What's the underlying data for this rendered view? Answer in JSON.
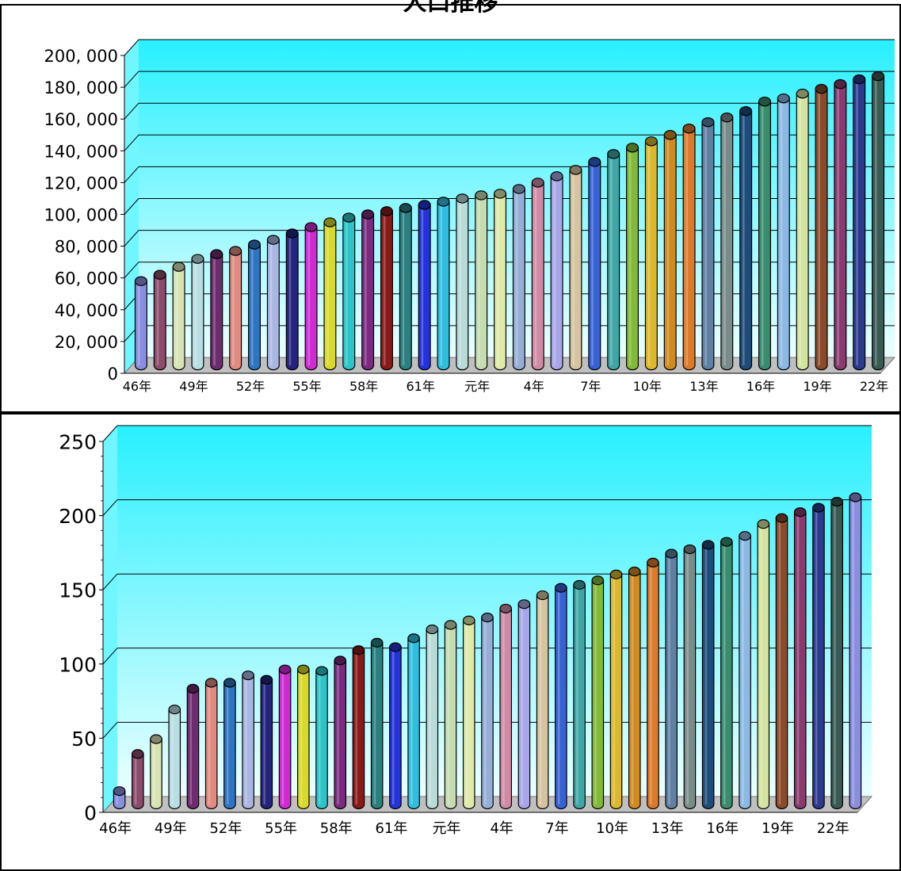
{
  "page": {
    "title": "人口推移"
  },
  "chart_data": [
    {
      "type": "bar",
      "title": "",
      "xlabel": "",
      "ylabel": "",
      "ylim": [
        0,
        200000
      ],
      "yticks": [
        "0",
        "20, 000",
        "40, 000",
        "60, 000",
        "80, 000",
        "100, 000",
        "120, 000",
        "140, 000",
        "160, 000",
        "180, 000",
        "200, 000"
      ],
      "tick_labels": [
        "46年",
        "49年",
        "52年",
        "55年",
        "58年",
        "61年",
        "元年",
        "4年",
        "7年",
        "10年",
        "13年",
        "16年",
        "19年",
        "22年"
      ],
      "values": [
        53000,
        57000,
        62000,
        67000,
        70000,
        72000,
        76000,
        79000,
        83000,
        87000,
        90000,
        93000,
        95000,
        97000,
        99000,
        101000,
        103000,
        105000,
        107000,
        108000,
        111000,
        115000,
        119000,
        123000,
        128000,
        133000,
        137000,
        141000,
        145000,
        149000,
        153000,
        156000,
        160000,
        166000,
        168000,
        171000,
        174000,
        177000,
        180000,
        182000
      ]
    },
    {
      "type": "bar",
      "title": "",
      "xlabel": "",
      "ylabel": "",
      "ylim": [
        0,
        250
      ],
      "yticks": [
        "0",
        "50",
        "100",
        "150",
        "200",
        "250"
      ],
      "tick_labels": [
        "46年",
        "49年",
        "52年",
        "55年",
        "58年",
        "61年",
        "元年",
        "4年",
        "7年",
        "10年",
        "13年",
        "16年",
        "19年",
        "22年"
      ],
      "values": [
        9,
        34,
        44,
        64,
        78,
        82,
        82,
        87,
        84,
        91,
        91,
        90,
        97,
        104,
        109,
        106,
        112,
        118,
        121,
        124,
        126,
        132,
        135,
        141,
        146,
        148,
        151,
        155,
        157,
        163,
        169,
        172,
        175,
        177,
        181,
        189,
        193,
        197,
        200,
        204,
        207
      ]
    }
  ],
  "colors": {
    "plot_top": "#28f0ff",
    "plot_bottom": "#e8ffff",
    "floor": "#c0c0c0",
    "bar_palette": [
      "#8a8ee0",
      "#8c4b6a",
      "#d8e3b5",
      "#b8dde3",
      "#6e2b6e",
      "#e08a80",
      "#2d74c2",
      "#a9b6e3",
      "#24237e",
      "#ce2bd3",
      "#d9d92b",
      "#2bc4c8",
      "#7b2a80",
      "#8a1a1a",
      "#2a7f7f",
      "#2432d9",
      "#2fbee0",
      "#b8dbd7",
      "#c4dcb0",
      "#dfe9a8",
      "#96add6",
      "#d08aa4",
      "#a7a6e8",
      "#d6c4a0",
      "#3761d4",
      "#3fa6a6",
      "#82ba38",
      "#dcb82f",
      "#d08a20",
      "#dc7a2b",
      "#5f7fa3",
      "#7a8c8a",
      "#1d4b7a",
      "#3a8c6e",
      "#8cb9e3",
      "#d4e4a0",
      "#8b4a2a",
      "#8a3a6e",
      "#2b3a8c",
      "#3a5a54"
    ]
  }
}
